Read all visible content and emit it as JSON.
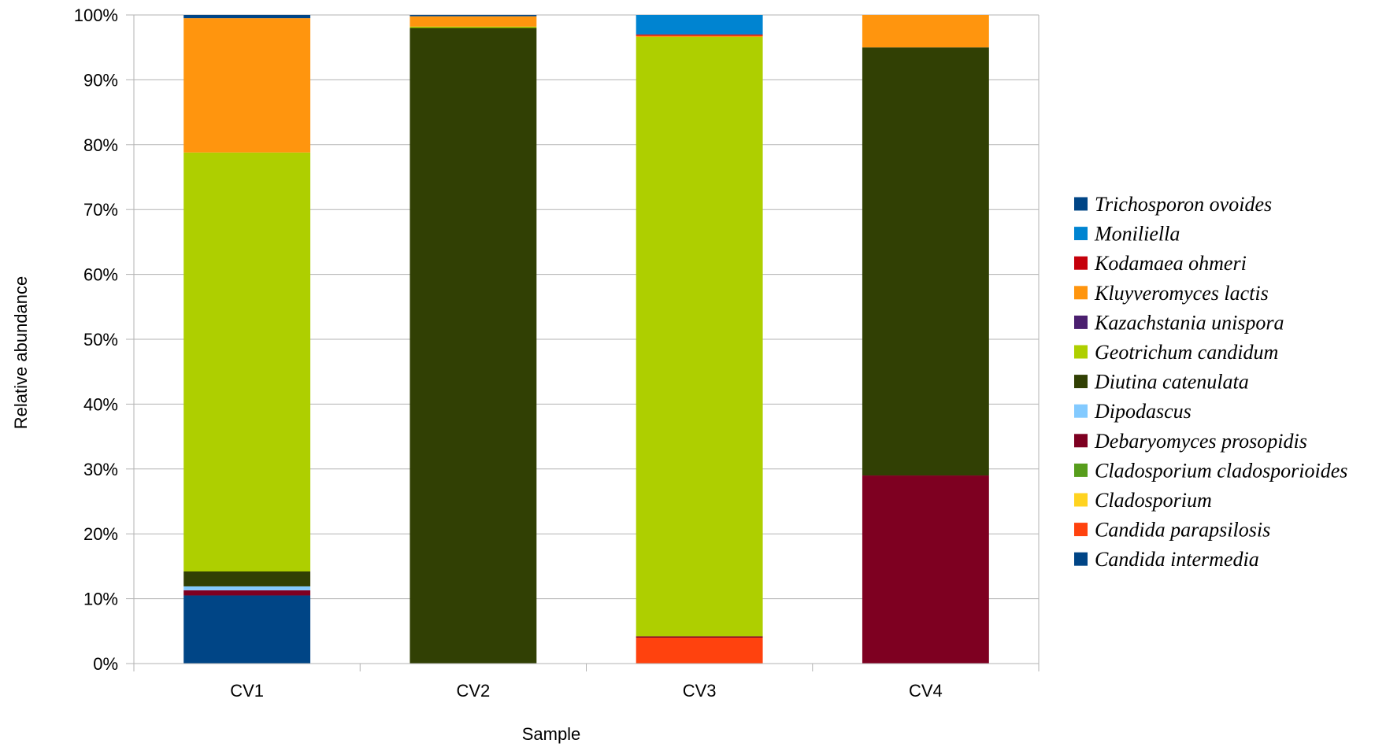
{
  "chart_data": {
    "type": "bar",
    "stacked": true,
    "percent": true,
    "xlabel": "Sample",
    "ylabel": "Relative abundance",
    "ylim": [
      0,
      100
    ],
    "yticks": [
      0,
      10,
      20,
      30,
      40,
      50,
      60,
      70,
      80,
      90,
      100
    ],
    "ytick_format": "%",
    "grid": true,
    "legend_position": "right",
    "categories": [
      "CV1",
      "CV2",
      "CV3",
      "CV4"
    ],
    "series": [
      {
        "name": "Candida intermedia",
        "color": "#004586",
        "values": [
          10.5,
          0,
          0,
          0
        ]
      },
      {
        "name": "Candida parapsilosis",
        "color": "#ff420e",
        "values": [
          0,
          0,
          4.0,
          0
        ]
      },
      {
        "name": "Cladosporium",
        "color": "#ffd320",
        "values": [
          0,
          0,
          0,
          0
        ]
      },
      {
        "name": "Cladosporium cladosporioides",
        "color": "#579d1c",
        "values": [
          0,
          0,
          0,
          0
        ]
      },
      {
        "name": "Debaryomyces prosopidis",
        "color": "#7e0021",
        "values": [
          0.8,
          0,
          0.2,
          29.0
        ]
      },
      {
        "name": "Dipodascus",
        "color": "#83caff",
        "values": [
          0.6,
          0,
          0,
          0
        ]
      },
      {
        "name": "Diutina catenulata",
        "color": "#314004",
        "values": [
          2.3,
          98.0,
          0,
          66.0
        ]
      },
      {
        "name": "Geotrichum candidum",
        "color": "#aecf00",
        "values": [
          64.6,
          0.2,
          92.4,
          0
        ]
      },
      {
        "name": "Kazachstania unispora",
        "color": "#4b1f6f",
        "values": [
          0,
          0,
          0,
          0
        ]
      },
      {
        "name": "Kluyveromyces lactis",
        "color": "#ff950e",
        "values": [
          20.7,
          1.6,
          0.2,
          5.0
        ]
      },
      {
        "name": "Kodamaea ohmeri",
        "color": "#c5000b",
        "values": [
          0,
          0,
          0.2,
          0
        ]
      },
      {
        "name": "Moniliella",
        "color": "#0084d1",
        "values": [
          0,
          0,
          3.0,
          0
        ]
      },
      {
        "name": "Trichosporon ovoides",
        "color": "#004586",
        "values": [
          0.5,
          0.2,
          0,
          0
        ]
      }
    ]
  }
}
